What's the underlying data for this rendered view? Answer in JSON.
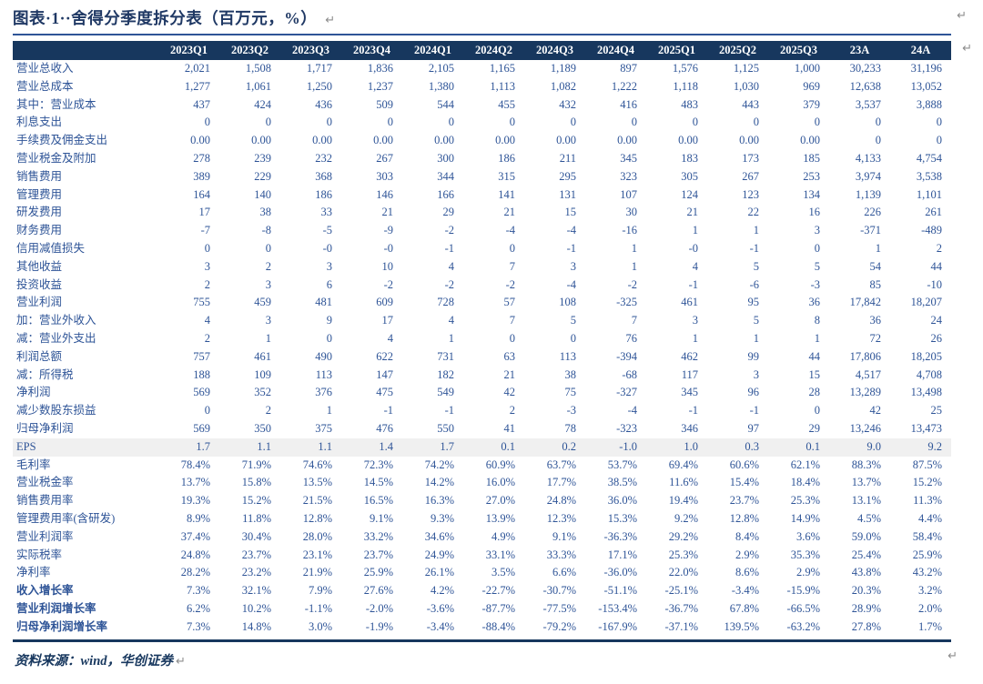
{
  "title": {
    "text": "图表·1··舍得分季度拆分表（百万元，%）",
    "return_mark": "↵"
  },
  "table": {
    "columns": [
      "2023Q1",
      "2023Q2",
      "2023Q3",
      "2023Q4",
      "2024Q1",
      "2024Q2",
      "2024Q3",
      "2024Q4",
      "2025Q1",
      "2025Q2",
      "2025Q3",
      "23A",
      "24A"
    ],
    "rows": [
      {
        "label": "营业总收入",
        "values": [
          "2,021",
          "1,508",
          "1,717",
          "1,836",
          "2,105",
          "1,165",
          "1,189",
          "897",
          "1,576",
          "1,125",
          "1,000",
          "30,233",
          "31,196"
        ]
      },
      {
        "label": "营业总成本",
        "values": [
          "1,277",
          "1,061",
          "1,250",
          "1,237",
          "1,380",
          "1,113",
          "1,082",
          "1,222",
          "1,118",
          "1,030",
          "969",
          "12,638",
          "13,052"
        ]
      },
      {
        "label": "其中：营业成本",
        "values": [
          "437",
          "424",
          "436",
          "509",
          "544",
          "455",
          "432",
          "416",
          "483",
          "443",
          "379",
          "3,537",
          "3,888"
        ]
      },
      {
        "label": "利息支出",
        "values": [
          "0",
          "0",
          "0",
          "0",
          "0",
          "0",
          "0",
          "0",
          "0",
          "0",
          "0",
          "0",
          "0"
        ]
      },
      {
        "label": "手续费及佣金支出",
        "values": [
          "0.00",
          "0.00",
          "0.00",
          "0.00",
          "0.00",
          "0.00",
          "0.00",
          "0.00",
          "0.00",
          "0.00",
          "0.00",
          "0",
          "0"
        ]
      },
      {
        "label": "营业税金及附加",
        "values": [
          "278",
          "239",
          "232",
          "267",
          "300",
          "186",
          "211",
          "345",
          "183",
          "173",
          "185",
          "4,133",
          "4,754"
        ]
      },
      {
        "label": "销售费用",
        "values": [
          "389",
          "229",
          "368",
          "303",
          "344",
          "315",
          "295",
          "323",
          "305",
          "267",
          "253",
          "3,974",
          "3,538"
        ]
      },
      {
        "label": "管理费用",
        "values": [
          "164",
          "140",
          "186",
          "146",
          "166",
          "141",
          "131",
          "107",
          "124",
          "123",
          "134",
          "1,139",
          "1,101"
        ]
      },
      {
        "label": "研发费用",
        "values": [
          "17",
          "38",
          "33",
          "21",
          "29",
          "21",
          "15",
          "30",
          "21",
          "22",
          "16",
          "226",
          "261"
        ]
      },
      {
        "label": "财务费用",
        "values": [
          "-7",
          "-8",
          "-5",
          "-9",
          "-2",
          "-4",
          "-4",
          "-16",
          "1",
          "1",
          "3",
          "-371",
          "-489"
        ]
      },
      {
        "label": "信用减值损失",
        "values": [
          "0",
          "0",
          "-0",
          "-0",
          "-1",
          "0",
          "-1",
          "1",
          "-0",
          "-1",
          "0",
          "1",
          "2"
        ]
      },
      {
        "label": "其他收益",
        "values": [
          "3",
          "2",
          "3",
          "10",
          "4",
          "7",
          "3",
          "1",
          "4",
          "5",
          "5",
          "54",
          "44"
        ]
      },
      {
        "label": "投资收益",
        "values": [
          "2",
          "3",
          "6",
          "-2",
          "-2",
          "-2",
          "-4",
          "-2",
          "-1",
          "-6",
          "-3",
          "85",
          "-10"
        ]
      },
      {
        "label": "营业利润",
        "values": [
          "755",
          "459",
          "481",
          "609",
          "728",
          "57",
          "108",
          "-325",
          "461",
          "95",
          "36",
          "17,842",
          "18,207"
        ]
      },
      {
        "label": "加：营业外收入",
        "values": [
          "4",
          "3",
          "9",
          "17",
          "4",
          "7",
          "5",
          "7",
          "3",
          "5",
          "8",
          "36",
          "24"
        ]
      },
      {
        "label": "减：营业外支出",
        "values": [
          "2",
          "1",
          "0",
          "4",
          "1",
          "0",
          "0",
          "76",
          "1",
          "1",
          "1",
          "72",
          "26"
        ]
      },
      {
        "label": "利润总额",
        "values": [
          "757",
          "461",
          "490",
          "622",
          "731",
          "63",
          "113",
          "-394",
          "462",
          "99",
          "44",
          "17,806",
          "18,205"
        ]
      },
      {
        "label": "减：所得税",
        "values": [
          "188",
          "109",
          "113",
          "147",
          "182",
          "21",
          "38",
          "-68",
          "117",
          "3",
          "15",
          "4,517",
          "4,708"
        ]
      },
      {
        "label": "净利润",
        "values": [
          "569",
          "352",
          "376",
          "475",
          "549",
          "42",
          "75",
          "-327",
          "345",
          "96",
          "28",
          "13,289",
          "13,498"
        ]
      },
      {
        "label": "减少数股东损益",
        "values": [
          "0",
          "2",
          "1",
          "-1",
          "-1",
          "2",
          "-3",
          "-4",
          "-1",
          "-1",
          "0",
          "42",
          "25"
        ]
      },
      {
        "label": "归母净利润",
        "values": [
          "569",
          "350",
          "375",
          "476",
          "550",
          "41",
          "78",
          "-323",
          "346",
          "97",
          "29",
          "13,246",
          "13,473"
        ]
      },
      {
        "label": "EPS",
        "values": [
          "1.7",
          "1.1",
          "1.1",
          "1.4",
          "1.7",
          "0.1",
          "0.2",
          "-1.0",
          "1.0",
          "0.3",
          "0.1",
          "9.0",
          "9.2"
        ],
        "highlight": true
      },
      {
        "label": "毛利率",
        "values": [
          "78.4%",
          "71.9%",
          "74.6%",
          "72.3%",
          "74.2%",
          "60.9%",
          "63.7%",
          "53.7%",
          "69.4%",
          "60.6%",
          "62.1%",
          "88.3%",
          "87.5%"
        ]
      },
      {
        "label": "营业税金率",
        "values": [
          "13.7%",
          "15.8%",
          "13.5%",
          "14.5%",
          "14.2%",
          "16.0%",
          "17.7%",
          "38.5%",
          "11.6%",
          "15.4%",
          "18.4%",
          "13.7%",
          "15.2%"
        ]
      },
      {
        "label": "销售费用率",
        "values": [
          "19.3%",
          "15.2%",
          "21.5%",
          "16.5%",
          "16.3%",
          "27.0%",
          "24.8%",
          "36.0%",
          "19.4%",
          "23.7%",
          "25.3%",
          "13.1%",
          "11.3%"
        ]
      },
      {
        "label": "管理费用率(含研发)",
        "values": [
          "8.9%",
          "11.8%",
          "12.8%",
          "9.1%",
          "9.3%",
          "13.9%",
          "12.3%",
          "15.3%",
          "9.2%",
          "12.8%",
          "14.9%",
          "4.5%",
          "4.4%"
        ]
      },
      {
        "label": "营业利润率",
        "values": [
          "37.4%",
          "30.4%",
          "28.0%",
          "33.2%",
          "34.6%",
          "4.9%",
          "9.1%",
          "-36.3%",
          "29.2%",
          "8.4%",
          "3.6%",
          "59.0%",
          "58.4%"
        ]
      },
      {
        "label": "实际税率",
        "values": [
          "24.8%",
          "23.7%",
          "23.1%",
          "23.7%",
          "24.9%",
          "33.1%",
          "33.3%",
          "17.1%",
          "25.3%",
          "2.9%",
          "35.3%",
          "25.4%",
          "25.9%"
        ]
      },
      {
        "label": "净利率",
        "values": [
          "28.2%",
          "23.2%",
          "21.9%",
          "25.9%",
          "26.1%",
          "3.5%",
          "6.6%",
          "-36.0%",
          "22.0%",
          "8.6%",
          "2.9%",
          "43.8%",
          "43.2%"
        ]
      },
      {
        "label": "收入增长率",
        "values": [
          "7.3%",
          "32.1%",
          "7.9%",
          "27.6%",
          "4.2%",
          "-22.7%",
          "-30.7%",
          "-51.1%",
          "-25.1%",
          "-3.4%",
          "-15.9%",
          "20.3%",
          "3.2%"
        ],
        "bold": true
      },
      {
        "label": "营业利润增长率",
        "values": [
          "6.2%",
          "10.2%",
          "-1.1%",
          "-2.0%",
          "-3.6%",
          "-87.7%",
          "-77.5%",
          "-153.4%",
          "-36.7%",
          "67.8%",
          "-66.5%",
          "28.9%",
          "2.0%"
        ],
        "bold": true
      },
      {
        "label": "归母净利润增长率",
        "values": [
          "7.3%",
          "14.8%",
          "3.0%",
          "-1.9%",
          "-3.4%",
          "-88.4%",
          "-79.2%",
          "-167.9%",
          "-37.1%",
          "139.5%",
          "-63.2%",
          "27.8%",
          "1.7%"
        ],
        "bold": true
      }
    ]
  },
  "footer": {
    "source": "资料来源：wind，华创证券",
    "return_mark": "↵"
  },
  "colors": {
    "header_bg": "#17375E",
    "body_text_blue": "#2E5497",
    "title_navy": "#1F3864",
    "eps_highlight_bg": "#F0F0F0",
    "return_mark_gray": "#8C8C8C"
  }
}
